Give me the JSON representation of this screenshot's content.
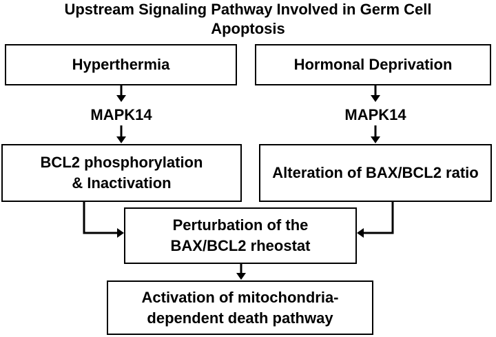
{
  "title": {
    "line1": "Upstream Signaling Pathway Involved in Germ Cell",
    "line2": "Apoptosis"
  },
  "left_branch": {
    "trigger": "Hyperthermia",
    "kinase": "MAPK14",
    "effect_line1": "BCL2 phosphorylation",
    "effect_line2": "& Inactivation"
  },
  "right_branch": {
    "trigger": "Hormonal Deprivation",
    "kinase": "MAPK14",
    "effect": "Alteration of BAX/BCL2 ratio"
  },
  "convergence": {
    "line1": "Perturbation of the",
    "line2": "BAX/BCL2 rheostat"
  },
  "outcome": {
    "line1": "Activation of mitochondria-",
    "line2": "dependent death pathway"
  }
}
